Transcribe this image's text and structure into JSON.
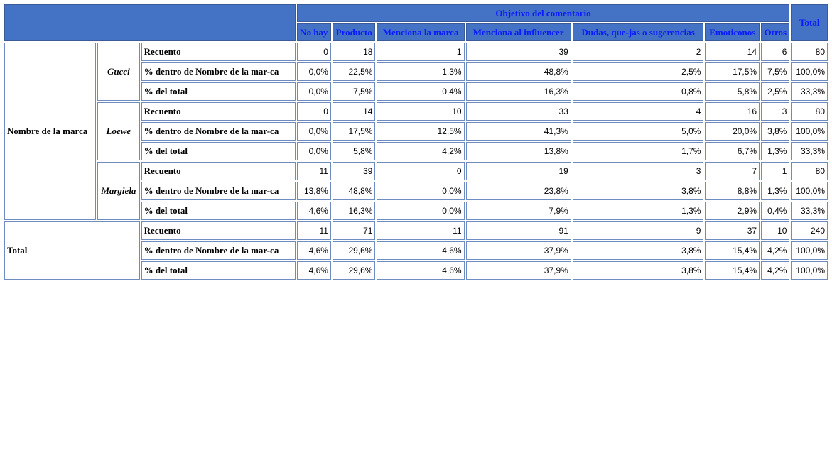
{
  "table": {
    "group_header": "Objetivo del comentario",
    "columns": [
      "No hay",
      "Producto",
      "Menciona la marca",
      "Menciona al influencer",
      "Dudas, que-jas o sugerencias",
      "Emoticonos",
      "Otros"
    ],
    "total_header": "Total",
    "row_variable": "Nombre de la marca",
    "groups": [
      {
        "label": "Gucci",
        "rows": [
          {
            "label": "Recuento",
            "cells": [
              "0",
              "18",
              "1",
              "39",
              "2",
              "14",
              "6",
              "80"
            ]
          },
          {
            "label": "% dentro de Nombre de la mar-ca",
            "cells": [
              "0,0%",
              "22,5%",
              "1,3%",
              "48,8%",
              "2,5%",
              "17,5%",
              "7,5%",
              "100,0%"
            ]
          },
          {
            "label": "% del total",
            "cells": [
              "0,0%",
              "7,5%",
              "0,4%",
              "16,3%",
              "0,8%",
              "5,8%",
              "2,5%",
              "33,3%"
            ]
          }
        ]
      },
      {
        "label": "Loewe",
        "rows": [
          {
            "label": "Recuento",
            "cells": [
              "0",
              "14",
              "10",
              "33",
              "4",
              "16",
              "3",
              "80"
            ]
          },
          {
            "label": "% dentro de Nombre de la mar-ca",
            "cells": [
              "0,0%",
              "17,5%",
              "12,5%",
              "41,3%",
              "5,0%",
              "20,0%",
              "3,8%",
              "100,0%"
            ]
          },
          {
            "label": "% del total",
            "cells": [
              "0,0%",
              "5,8%",
              "4,2%",
              "13,8%",
              "1,7%",
              "6,7%",
              "1,3%",
              "33,3%"
            ]
          }
        ]
      },
      {
        "label": "Margiela",
        "rows": [
          {
            "label": "Recuento",
            "cells": [
              "11",
              "39",
              "0",
              "19",
              "3",
              "7",
              "1",
              "80"
            ]
          },
          {
            "label": "% dentro de Nombre de la mar-ca",
            "cells": [
              "13,8%",
              "48,8%",
              "0,0%",
              "23,8%",
              "3,8%",
              "8,8%",
              "1,3%",
              "100,0%"
            ]
          },
          {
            "label": "% del total",
            "cells": [
              "4,6%",
              "16,3%",
              "0,0%",
              "7,9%",
              "1,3%",
              "2,9%",
              "0,4%",
              "33,3%"
            ]
          }
        ]
      }
    ],
    "total": {
      "label": "Total",
      "rows": [
        {
          "label": "Recuento",
          "cells": [
            "11",
            "71",
            "11",
            "91",
            "9",
            "37",
            "10",
            "240"
          ]
        },
        {
          "label": "% dentro de Nombre de la mar-ca",
          "cells": [
            "4,6%",
            "29,6%",
            "4,6%",
            "37,9%",
            "3,8%",
            "15,4%",
            "4,2%",
            "100,0%"
          ]
        },
        {
          "label": "% del total",
          "cells": [
            "4,6%",
            "29,6%",
            "4,6%",
            "37,9%",
            "3,8%",
            "15,4%",
            "4,2%",
            "100,0%"
          ]
        }
      ]
    }
  }
}
